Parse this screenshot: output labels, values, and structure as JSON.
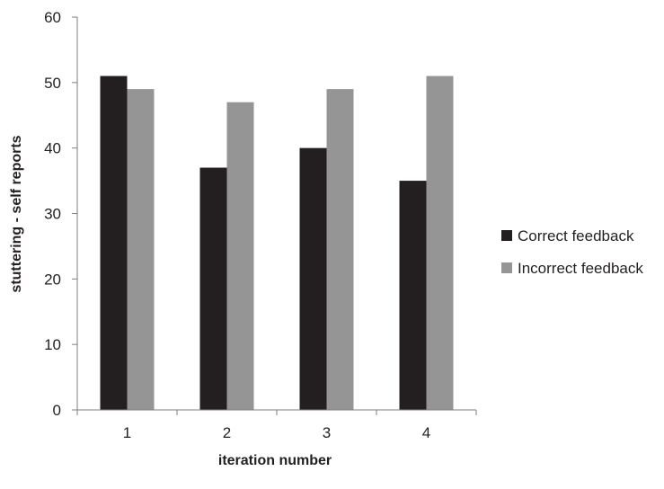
{
  "chart_data": {
    "type": "bar",
    "title": "",
    "xlabel": "iteration number",
    "ylabel": "stuttering - self reports",
    "categories": [
      "1",
      "2",
      "3",
      "4"
    ],
    "series": [
      {
        "name": "Correct feedback",
        "values": [
          51,
          37,
          40,
          35
        ],
        "color": "#231f20"
      },
      {
        "name": "Incorrect feedback",
        "values": [
          49,
          47,
          49,
          51
        ],
        "color": "#959595"
      }
    ],
    "ylim": [
      0,
      60
    ],
    "yticks": [
      "0",
      "10",
      "20",
      "30",
      "40",
      "50",
      "60"
    ],
    "grid": false,
    "legend": "right"
  }
}
